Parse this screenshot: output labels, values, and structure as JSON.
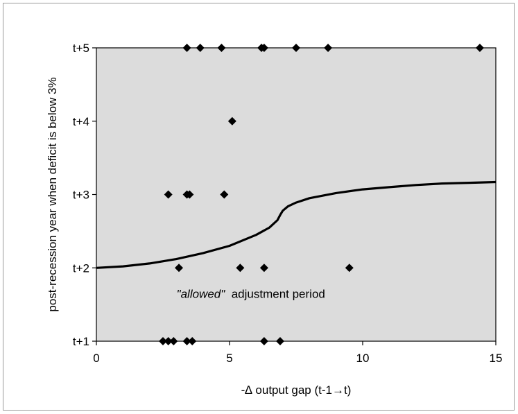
{
  "chart_data": {
    "type": "scatter",
    "xlabel": "-∆ output gap (t-1→t)",
    "ylabel": "post-recession year when deficit is below 3%",
    "xlim": [
      0,
      15
    ],
    "ylim": [
      1,
      5
    ],
    "x_ticks": [
      {
        "value": 0,
        "label": "0"
      },
      {
        "value": 5,
        "label": "5"
      },
      {
        "value": 10,
        "label": "10"
      },
      {
        "value": 15,
        "label": "15"
      }
    ],
    "y_ticks": [
      {
        "value": 1,
        "label": "t+1"
      },
      {
        "value": 2,
        "label": "t+2"
      },
      {
        "value": 3,
        "label": "t+3"
      },
      {
        "value": 4,
        "label": "t+4"
      },
      {
        "value": 5,
        "label": "t+5"
      }
    ],
    "grid": false,
    "plot_background": "#dcdcdc",
    "marker_color": "#000000",
    "marker": "diamond",
    "points": [
      {
        "x": 2.5,
        "y": 1
      },
      {
        "x": 2.7,
        "y": 1
      },
      {
        "x": 2.9,
        "y": 1
      },
      {
        "x": 3.4,
        "y": 1
      },
      {
        "x": 3.6,
        "y": 1
      },
      {
        "x": 6.3,
        "y": 1
      },
      {
        "x": 6.9,
        "y": 1
      },
      {
        "x": 3.1,
        "y": 2
      },
      {
        "x": 5.4,
        "y": 2
      },
      {
        "x": 6.3,
        "y": 2
      },
      {
        "x": 9.5,
        "y": 2
      },
      {
        "x": 2.7,
        "y": 3
      },
      {
        "x": 3.4,
        "y": 3
      },
      {
        "x": 3.5,
        "y": 3
      },
      {
        "x": 4.8,
        "y": 3
      },
      {
        "x": 5.1,
        "y": 4
      },
      {
        "x": 3.4,
        "y": 5
      },
      {
        "x": 3.9,
        "y": 5
      },
      {
        "x": 4.7,
        "y": 5
      },
      {
        "x": 6.2,
        "y": 5
      },
      {
        "x": 6.3,
        "y": 5
      },
      {
        "x": 7.5,
        "y": 5
      },
      {
        "x": 8.7,
        "y": 5
      },
      {
        "x": 14.4,
        "y": 5
      }
    ],
    "curve": {
      "name": "",
      "color": "#000000",
      "points": [
        [
          0,
          2.0
        ],
        [
          1,
          2.02
        ],
        [
          2,
          2.06
        ],
        [
          3,
          2.12
        ],
        [
          4,
          2.2
        ],
        [
          5,
          2.3
        ],
        [
          6,
          2.45
        ],
        [
          6.5,
          2.55
        ],
        [
          6.8,
          2.65
        ],
        [
          6.9,
          2.72
        ],
        [
          7.0,
          2.78
        ],
        [
          7.2,
          2.84
        ],
        [
          7.5,
          2.89
        ],
        [
          8,
          2.95
        ],
        [
          9,
          3.02
        ],
        [
          10,
          3.07
        ],
        [
          11,
          3.1
        ],
        [
          12,
          3.13
        ],
        [
          13,
          3.15
        ],
        [
          14,
          3.16
        ],
        [
          15,
          3.17
        ]
      ]
    },
    "annotation": {
      "italic_part": "\"allowed\"",
      "rest": " adjustment period",
      "x": 5.8,
      "y": 1.65
    }
  }
}
